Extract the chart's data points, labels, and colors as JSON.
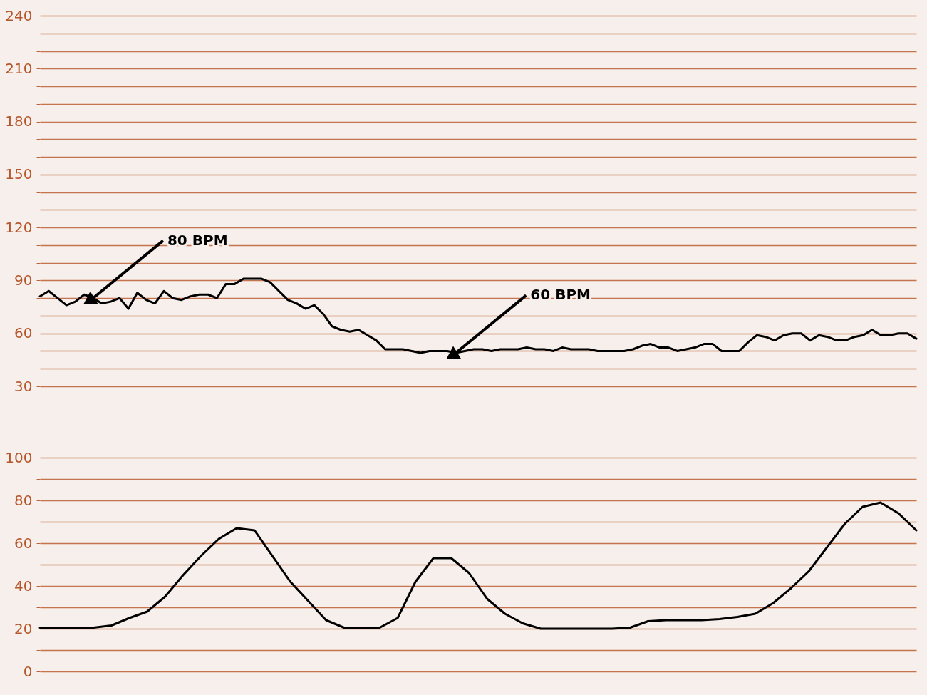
{
  "chart_data": [
    {
      "type": "line",
      "categories": [
        null,
        null,
        null,
        null,
        null,
        null,
        null,
        null,
        null,
        null,
        null,
        null,
        null,
        null,
        null,
        null,
        null,
        null,
        null,
        null,
        null,
        null,
        null,
        null,
        null,
        null,
        null,
        null,
        null,
        null,
        null,
        null,
        null,
        null,
        null,
        null,
        null,
        null,
        null,
        null,
        null,
        null,
        null,
        null,
        null,
        null,
        null,
        null,
        null,
        null,
        null,
        null,
        null,
        null,
        null,
        null,
        null,
        null,
        null,
        null,
        null,
        null,
        null,
        null,
        null,
        null,
        null,
        null,
        null,
        null,
        null,
        null,
        null,
        null,
        null,
        null,
        null,
        null,
        null,
        null,
        null,
        null,
        null,
        null,
        null,
        null,
        null,
        null,
        null,
        null,
        null,
        null,
        null,
        null,
        null,
        null,
        null,
        null,
        null,
        null
      ],
      "series": [
        {
          "color": "#000000",
          "values": [
            81,
            84,
            80,
            76,
            78,
            82,
            80,
            77,
            78,
            80,
            74,
            83,
            79,
            77,
            84,
            80,
            79,
            81,
            82,
            82,
            80,
            88,
            88,
            91,
            91,
            91,
            89,
            84,
            79,
            77,
            74,
            76,
            71,
            64,
            62,
            61,
            62,
            59,
            56,
            51,
            51,
            51,
            50,
            49,
            50,
            50,
            50,
            49,
            50,
            51,
            51,
            50,
            51,
            51,
            51,
            52,
            51,
            51,
            50,
            52,
            51,
            51,
            51,
            50,
            50,
            50,
            50,
            51,
            53,
            54,
            52,
            52,
            50,
            51,
            52,
            54,
            54,
            50,
            50,
            50,
            55,
            59,
            58,
            56,
            59,
            60,
            60,
            56,
            59,
            58,
            56,
            56,
            58,
            59,
            62,
            59,
            59,
            60,
            60,
            57
          ]
        }
      ],
      "ylim": [
        30,
        240
      ],
      "yticks": [
        30,
        {
          "value": 40,
          "label": null
        },
        {
          "value": 50,
          "label": null
        },
        60,
        {
          "value": 70,
          "label": null
        },
        {
          "value": 80,
          "label": null
        },
        90,
        {
          "value": 100,
          "label": null
        },
        {
          "value": 110,
          "label": null
        },
        120,
        {
          "value": 130,
          "label": null
        },
        {
          "value": 140,
          "label": null
        },
        150,
        {
          "value": 160,
          "label": null
        },
        {
          "value": 170,
          "label": null
        },
        180,
        {
          "value": 190,
          "label": null
        },
        {
          "value": 200,
          "label": null
        },
        210,
        {
          "value": 220,
          "label": null
        },
        {
          "value": 230,
          "label": null
        },
        240
      ],
      "grid": "y",
      "tick_labels": "y",
      "annotations": [
        "80 BPM",
        "60 BPM"
      ]
    },
    {
      "type": "line",
      "categories": [
        null,
        null,
        null,
        null,
        null,
        null,
        null,
        null,
        null,
        null,
        null,
        null,
        null,
        null,
        null,
        null,
        null,
        null,
        null,
        null,
        null,
        null,
        null,
        null,
        null,
        null,
        null,
        null,
        null,
        null,
        null,
        null,
        null,
        null,
        null,
        null,
        null,
        null,
        null,
        null,
        null,
        null,
        null,
        null,
        null,
        null,
        null,
        null,
        null,
        null
      ],
      "series": [
        {
          "color": "#000000",
          "values": [
            20.5,
            20.5,
            20.5,
            20.5,
            21.5,
            25,
            28,
            35,
            45,
            54,
            62,
            67,
            66,
            54,
            42,
            33,
            24,
            20.5,
            20.5,
            20.5,
            25,
            42,
            53,
            53,
            46,
            34,
            27,
            22.5,
            20,
            20,
            20,
            20,
            20,
            20.5,
            23.5,
            24,
            24,
            24,
            24.5,
            25.5,
            27,
            32,
            39,
            47,
            58,
            69,
            77,
            79,
            74,
            66
          ]
        }
      ],
      "ylim": [
        0,
        100
      ],
      "yticks": [
        0,
        {
          "value": 10,
          "label": null
        },
        20,
        {
          "value": 30,
          "label": null
        },
        40,
        {
          "value": 50,
          "label": null
        },
        60,
        {
          "value": 70,
          "label": null
        },
        80,
        {
          "value": 90,
          "label": null
        },
        100
      ],
      "grid": "y",
      "tick_labels": "y"
    }
  ]
}
